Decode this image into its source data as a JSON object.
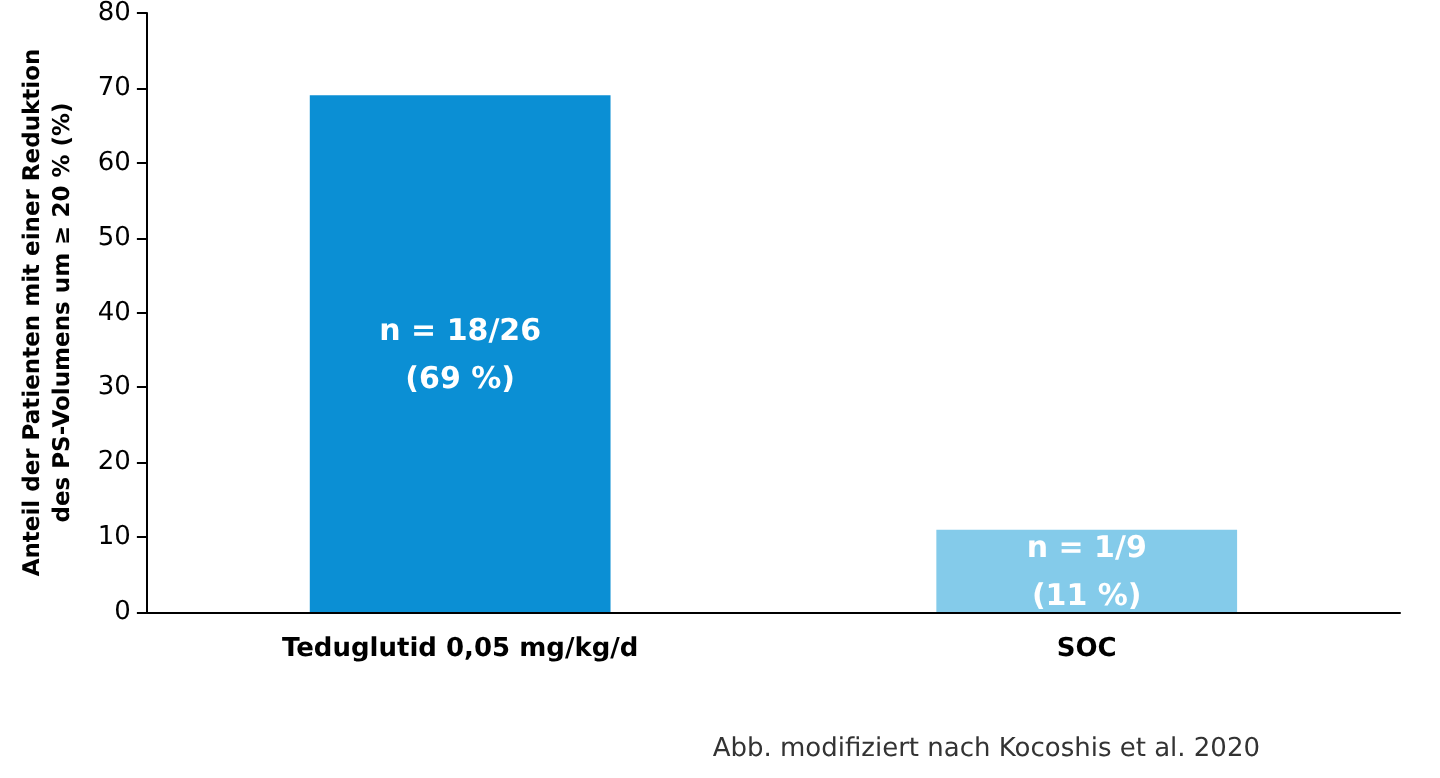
{
  "chart_data": {
    "type": "bar",
    "categories": [
      "Teduglutid 0,05 mg/kg/d",
      "SOC"
    ],
    "values": [
      69,
      11
    ],
    "colors": [
      "#0b8fd4",
      "#84cbea"
    ],
    "value_labels": [
      "n = 18/26\n(69 %)",
      "n = 1/9\n(11 %)"
    ],
    "ylabel": "Anteil der Patienten mit einer Reduktion\ndes PS-Volumens um ≥ 20 % (%)",
    "ylim": [
      0,
      80
    ],
    "yticks": [
      0,
      10,
      20,
      30,
      40,
      50,
      60,
      70,
      80
    ],
    "grid": false,
    "annotations": [
      "Abb. modifiziert nach Kocoshis et al. 2020"
    ]
  }
}
